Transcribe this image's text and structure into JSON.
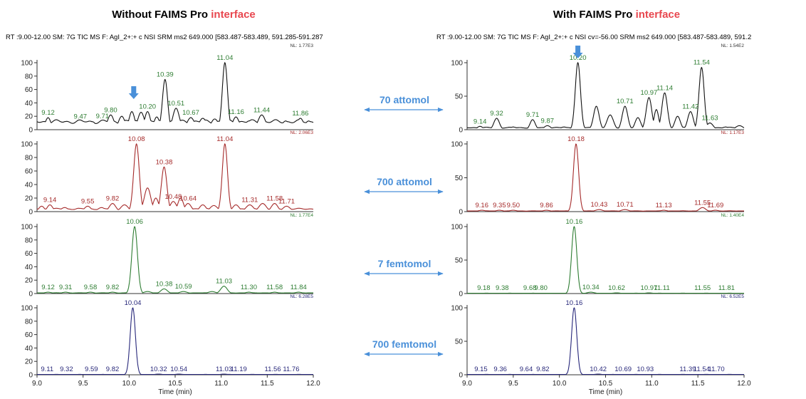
{
  "colors": {
    "black": "#111111",
    "red": "#a52a2a",
    "green": "#2e7d32",
    "blue": "#27277a",
    "accent": "#e8474f",
    "arrow": "#4a90d9"
  },
  "titles": {
    "left": {
      "main": "Without FAIMS Pro ",
      "accent": "interface"
    },
    "right": {
      "main": "With FAIMS Pro ",
      "accent": "interface"
    }
  },
  "headers": {
    "left": "RT :9.00-12.00 SM: 7G TIC  MS  F: AgI_2+:+ c NSI SRM ms2 649.000 [583.487-583.489, 591.285-591.287",
    "right": "RT :9.00-12.00 SM: 7G TIC  MS  F: AgI_2+:+ c NSI cv=-56.00 SRM ms2 649.000 [583.487-583.489, 591.2"
  },
  "amounts": [
    "70 attomol",
    "700 attomol",
    "7 femtomol",
    "700 femtomol"
  ],
  "chart_data": [
    {
      "type": "line",
      "side": "left",
      "panel": "70 attomol",
      "color": "black",
      "nl": "NL: 1.77E3",
      "xlim": [
        9.0,
        12.0
      ],
      "ylim": [
        0,
        100
      ],
      "yticks": [
        0,
        20,
        40,
        60,
        80,
        100
      ],
      "baseline": 12,
      "peaks": [
        [
          9.12,
          18,
          0.03
        ],
        [
          9.3,
          12,
          0.03
        ],
        [
          9.47,
          12,
          0.03
        ],
        [
          9.6,
          12,
          0.04
        ],
        [
          9.71,
          13,
          0.03
        ],
        [
          9.8,
          22,
          0.035
        ],
        [
          9.92,
          20,
          0.035
        ],
        [
          10.03,
          27,
          0.03
        ],
        [
          10.13,
          26,
          0.035
        ],
        [
          10.2,
          27,
          0.03
        ],
        [
          10.3,
          19,
          0.03
        ],
        [
          10.39,
          75,
          0.028
        ],
        [
          10.51,
          32,
          0.035
        ],
        [
          10.67,
          18,
          0.04
        ],
        [
          10.8,
          17,
          0.04
        ],
        [
          10.93,
          16,
          0.04
        ],
        [
          11.04,
          100,
          0.028
        ],
        [
          11.16,
          19,
          0.035
        ],
        [
          11.3,
          13,
          0.04
        ],
        [
          11.44,
          22,
          0.04
        ],
        [
          11.6,
          13,
          0.04
        ],
        [
          11.7,
          13,
          0.04
        ],
        [
          11.86,
          17,
          0.035
        ],
        [
          11.95,
          13,
          0.04
        ]
      ],
      "labels": [
        [
          "9.12",
          9.12,
          18
        ],
        [
          "9.47",
          9.47,
          12
        ],
        [
          "9.71",
          9.71,
          13
        ],
        [
          "9.80",
          9.8,
          22
        ],
        [
          "10.20",
          10.2,
          27
        ],
        [
          "10.39",
          10.39,
          75
        ],
        [
          "10.51",
          10.51,
          32
        ],
        [
          "10.67",
          10.67,
          18
        ],
        [
          "11.04",
          11.04,
          100
        ],
        [
          "11.16",
          11.16,
          19
        ],
        [
          "11.44",
          11.44,
          22
        ],
        [
          "11.86",
          11.86,
          17
        ]
      ],
      "arrow_x": 10.05
    },
    {
      "type": "line",
      "side": "left",
      "panel": "700 attomol",
      "color": "red",
      "nl": "NL: 2.06E3",
      "xlim": [
        9.0,
        12.0
      ],
      "ylim": [
        0,
        100
      ],
      "yticks": [
        0,
        20,
        40,
        60,
        80,
        100
      ],
      "baseline": 4,
      "peaks": [
        [
          9.05,
          8,
          0.03
        ],
        [
          9.14,
          10,
          0.03
        ],
        [
          9.3,
          6,
          0.04
        ],
        [
          9.45,
          5,
          0.04
        ],
        [
          9.55,
          8,
          0.035
        ],
        [
          9.7,
          6,
          0.04
        ],
        [
          9.82,
          12,
          0.035
        ],
        [
          9.95,
          10,
          0.04
        ],
        [
          10.08,
          100,
          0.03
        ],
        [
          10.2,
          35,
          0.035
        ],
        [
          10.29,
          20,
          0.03
        ],
        [
          10.38,
          66,
          0.03
        ],
        [
          10.48,
          15,
          0.035
        ],
        [
          10.56,
          20,
          0.03
        ],
        [
          10.64,
          12,
          0.035
        ],
        [
          10.8,
          10,
          0.035
        ],
        [
          10.92,
          9,
          0.04
        ],
        [
          11.04,
          100,
          0.028
        ],
        [
          11.16,
          10,
          0.035
        ],
        [
          11.31,
          10,
          0.04
        ],
        [
          11.45,
          12,
          0.04
        ],
        [
          11.58,
          12,
          0.035
        ],
        [
          11.71,
          8,
          0.04
        ],
        [
          11.85,
          5,
          0.04
        ]
      ],
      "labels": [
        [
          "9.14",
          9.14,
          10
        ],
        [
          "9.55",
          9.55,
          8
        ],
        [
          "9.82",
          9.82,
          12
        ],
        [
          "10.08",
          10.08,
          100
        ],
        [
          "10.38",
          10.38,
          66
        ],
        [
          "10.48",
          10.48,
          15
        ],
        [
          "10.64",
          10.64,
          12
        ],
        [
          "11.04",
          11.04,
          100
        ],
        [
          "11.31",
          11.31,
          10
        ],
        [
          "11.58",
          11.58,
          12
        ],
        [
          "11.71",
          11.71,
          8
        ]
      ]
    },
    {
      "type": "line",
      "side": "left",
      "panel": "7 femtomol",
      "color": "green",
      "nl": "NL: 1.77E4",
      "xlim": [
        9.0,
        12.0
      ],
      "ylim": [
        0,
        100
      ],
      "yticks": [
        0,
        20,
        40,
        60,
        80,
        100
      ],
      "baseline": 1,
      "peaks": [
        [
          9.12,
          2,
          0.04
        ],
        [
          9.31,
          2,
          0.04
        ],
        [
          9.58,
          2,
          0.04
        ],
        [
          9.82,
          2,
          0.04
        ],
        [
          10.06,
          100,
          0.03
        ],
        [
          10.2,
          3,
          0.04
        ],
        [
          10.38,
          7,
          0.035
        ],
        [
          10.59,
          3,
          0.04
        ],
        [
          10.9,
          3,
          0.04
        ],
        [
          11.03,
          11,
          0.035
        ],
        [
          11.3,
          2,
          0.04
        ],
        [
          11.58,
          2,
          0.04
        ],
        [
          11.84,
          2,
          0.04
        ]
      ],
      "labels": [
        [
          "9.12",
          9.12,
          2
        ],
        [
          "9.31",
          9.31,
          2
        ],
        [
          "9.58",
          9.58,
          2
        ],
        [
          "9.82",
          9.82,
          2
        ],
        [
          "10.06",
          10.06,
          100
        ],
        [
          "10.38",
          10.38,
          7
        ],
        [
          "10.59",
          10.59,
          3
        ],
        [
          "11.03",
          11.03,
          11
        ],
        [
          "11.30",
          11.3,
          2
        ],
        [
          "11.58",
          11.58,
          2
        ],
        [
          "11.84",
          11.84,
          2
        ]
      ]
    },
    {
      "type": "line",
      "side": "left",
      "panel": "700 femtomol",
      "color": "blue",
      "nl": "NL: 6.28E5",
      "xlim": [
        9.0,
        12.0
      ],
      "ylim": [
        0,
        100
      ],
      "yticks": [
        0,
        20,
        40,
        60,
        80,
        100
      ],
      "baseline": 0.5,
      "peaks": [
        [
          10.04,
          100,
          0.028
        ],
        [
          10.32,
          1,
          0.04
        ],
        [
          10.54,
          1,
          0.04
        ],
        [
          11.03,
          1,
          0.04
        ]
      ],
      "labels": [
        [
          "9.11",
          9.11,
          1
        ],
        [
          "9.32",
          9.32,
          1
        ],
        [
          "9.59",
          9.59,
          1
        ],
        [
          "9.82",
          9.82,
          1
        ],
        [
          "10.04",
          10.04,
          100
        ],
        [
          "10.32",
          10.32,
          1
        ],
        [
          "10.54",
          10.54,
          1
        ],
        [
          "11.03",
          11.03,
          1
        ],
        [
          "11.19",
          11.19,
          1
        ],
        [
          "11.56",
          11.56,
          1
        ],
        [
          "11.76",
          11.76,
          1
        ]
      ],
      "xticks": [
        9.0,
        9.5,
        10.0,
        10.5,
        11.0,
        11.5,
        12.0
      ],
      "xlabel": "Time (min)"
    },
    {
      "type": "line",
      "side": "right",
      "panel": "70 attomol",
      "color": "black",
      "nl": "NL: 1.54E2",
      "xlim": [
        9.0,
        12.0
      ],
      "ylim": [
        0,
        100
      ],
      "yticks": [
        0,
        50,
        100
      ],
      "baseline": 3,
      "peaks": [
        [
          9.14,
          5,
          0.03
        ],
        [
          9.32,
          17,
          0.03
        ],
        [
          9.5,
          4,
          0.04
        ],
        [
          9.71,
          15,
          0.028
        ],
        [
          9.87,
          6,
          0.035
        ],
        [
          10.05,
          4,
          0.04
        ],
        [
          10.2,
          100,
          0.028
        ],
        [
          10.4,
          35,
          0.03
        ],
        [
          10.55,
          22,
          0.035
        ],
        [
          10.71,
          35,
          0.03
        ],
        [
          10.85,
          18,
          0.03
        ],
        [
          10.97,
          48,
          0.03
        ],
        [
          11.05,
          30,
          0.025
        ],
        [
          11.14,
          55,
          0.03
        ],
        [
          11.28,
          20,
          0.03
        ],
        [
          11.42,
          27,
          0.03
        ],
        [
          11.54,
          93,
          0.028
        ],
        [
          11.63,
          10,
          0.035
        ],
        [
          11.8,
          4,
          0.04
        ],
        [
          11.95,
          6,
          0.04
        ]
      ],
      "labels": [
        [
          "9.14",
          9.14,
          5
        ],
        [
          "9.32",
          9.32,
          17
        ],
        [
          "9.71",
          9.71,
          15
        ],
        [
          "9.87",
          9.87,
          6
        ],
        [
          "10.20",
          10.2,
          100
        ],
        [
          "10.71",
          10.71,
          35
        ],
        [
          "10.97",
          10.97,
          48
        ],
        [
          "11.14",
          11.14,
          55
        ],
        [
          "11.42",
          11.42,
          27
        ],
        [
          "11.54",
          11.54,
          93
        ],
        [
          "11.63",
          11.63,
          10
        ]
      ],
      "arrow_x": 10.2
    },
    {
      "type": "line",
      "side": "right",
      "panel": "700 attomol",
      "color": "red",
      "nl": "NL: 1.17E3",
      "xlim": [
        9.0,
        12.0
      ],
      "ylim": [
        0,
        100
      ],
      "yticks": [
        0,
        50,
        100
      ],
      "baseline": 1,
      "peaks": [
        [
          9.16,
          2,
          0.04
        ],
        [
          9.35,
          2,
          0.04
        ],
        [
          9.5,
          2,
          0.04
        ],
        [
          9.86,
          2,
          0.04
        ],
        [
          10.18,
          100,
          0.028
        ],
        [
          10.43,
          3,
          0.04
        ],
        [
          10.71,
          3,
          0.04
        ],
        [
          11.13,
          2,
          0.04
        ],
        [
          11.55,
          6,
          0.035
        ],
        [
          11.69,
          2,
          0.04
        ]
      ],
      "labels": [
        [
          "9.16",
          9.16,
          2
        ],
        [
          "9.35",
          9.35,
          2
        ],
        [
          "9.50",
          9.5,
          2
        ],
        [
          "9.86",
          9.86,
          2
        ],
        [
          "10.18",
          10.18,
          100
        ],
        [
          "10.43",
          10.43,
          3
        ],
        [
          "10.71",
          10.71,
          3
        ],
        [
          "11.13",
          11.13,
          2
        ],
        [
          "11.55",
          11.55,
          6
        ],
        [
          "11.69",
          11.69,
          2
        ]
      ]
    },
    {
      "type": "line",
      "side": "right",
      "panel": "7 femtomol",
      "color": "green",
      "nl": "NL: 1.40E4",
      "xlim": [
        9.0,
        12.0
      ],
      "ylim": [
        0,
        100
      ],
      "yticks": [
        0,
        50,
        100
      ],
      "baseline": 0.5,
      "peaks": [
        [
          10.16,
          100,
          0.028
        ],
        [
          10.34,
          2,
          0.04
        ],
        [
          10.62,
          1,
          0.04
        ],
        [
          10.97,
          1,
          0.04
        ]
      ],
      "labels": [
        [
          "9.18",
          9.18,
          1
        ],
        [
          "9.38",
          9.38,
          1
        ],
        [
          "9.68",
          9.68,
          1
        ],
        [
          "9.80",
          9.8,
          1
        ],
        [
          "10.16",
          10.16,
          100
        ],
        [
          "10.34",
          10.34,
          2
        ],
        [
          "10.62",
          10.62,
          1
        ],
        [
          "10.97",
          10.97,
          1
        ],
        [
          "11.11",
          11.11,
          1
        ],
        [
          "11.55",
          11.55,
          1
        ],
        [
          "11.81",
          11.81,
          1
        ]
      ]
    },
    {
      "type": "line",
      "side": "right",
      "panel": "700 femtomol",
      "color": "blue",
      "nl": "NL: 6.52E5",
      "xlim": [
        9.0,
        12.0
      ],
      "ylim": [
        0,
        100
      ],
      "yticks": [
        0,
        50,
        100
      ],
      "baseline": 0.5,
      "peaks": [
        [
          10.16,
          100,
          0.028
        ],
        [
          10.42,
          1,
          0.04
        ]
      ],
      "labels": [
        [
          "9.15",
          9.15,
          1
        ],
        [
          "9.36",
          9.36,
          1
        ],
        [
          "9.64",
          9.64,
          1
        ],
        [
          "9.82",
          9.82,
          1
        ],
        [
          "10.16",
          10.16,
          100
        ],
        [
          "10.42",
          10.42,
          1
        ],
        [
          "10.69",
          10.69,
          1
        ],
        [
          "10.93",
          10.93,
          1
        ],
        [
          "11.39",
          11.39,
          1
        ],
        [
          "11.54",
          11.54,
          1
        ],
        [
          "11.70",
          11.7,
          1
        ]
      ],
      "xticks": [
        9.0,
        9.5,
        10.0,
        10.5,
        11.0,
        11.5,
        12.0
      ],
      "xlabel": "Time (min)"
    }
  ]
}
